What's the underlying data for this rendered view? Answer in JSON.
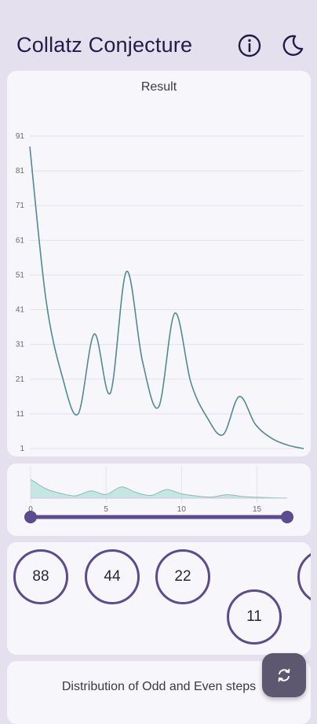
{
  "app": {
    "title": "Collatz Conjecture",
    "info_icon": "info-icon",
    "theme_icon": "moon-icon"
  },
  "colors": {
    "primary": "#5b4b91",
    "line": "#4f8a96",
    "area_fill": "#9ed8cf",
    "background": "#e4e0ee",
    "card": "#f7f6fa",
    "fab": "#5d5870"
  },
  "chart_data": [
    {
      "type": "line",
      "title": "Result",
      "x": [
        0,
        1,
        2,
        3,
        4,
        5,
        6,
        7,
        8,
        9,
        10,
        11,
        12,
        13,
        14,
        15,
        16,
        17
      ],
      "values": [
        88,
        44,
        22,
        11,
        34,
        17,
        52,
        26,
        13,
        40,
        20,
        10,
        5,
        16,
        8,
        4,
        2,
        1
      ],
      "yticks": [
        1,
        11,
        21,
        31,
        41,
        51,
        61,
        71,
        81,
        91
      ],
      "ylim": [
        1,
        91
      ],
      "grid": true
    },
    {
      "type": "area",
      "title": "",
      "x": [
        0,
        1,
        2,
        3,
        4,
        5,
        6,
        7,
        8,
        9,
        10,
        11,
        12,
        13,
        14,
        15,
        16,
        17
      ],
      "values": [
        88,
        44,
        22,
        11,
        34,
        17,
        52,
        26,
        13,
        40,
        20,
        10,
        5,
        16,
        8,
        4,
        2,
        1
      ],
      "xticks": [
        0,
        5,
        10,
        15
      ],
      "xlim": [
        0,
        17
      ]
    }
  ],
  "range_slider": {
    "start": 0,
    "end": 17
  },
  "sequence": {
    "items": [
      "88",
      "44",
      "22",
      "11"
    ]
  },
  "distribution": {
    "title": "Distribution of Odd and Even steps"
  },
  "fab": {
    "icon": "refresh-icon"
  }
}
